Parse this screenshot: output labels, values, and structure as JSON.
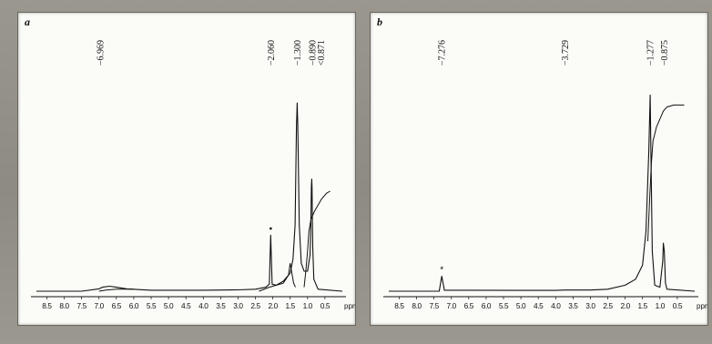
{
  "chart_data": [
    {
      "type": "line",
      "panel": "a",
      "title": "",
      "xlabel": "ppm",
      "ylabel": "",
      "xlim": [
        8.8,
        0.0
      ],
      "x_reversed": true,
      "grid": false,
      "x_ticks": [
        "8.5",
        "8.0",
        "7.5",
        "7.0",
        "6.5",
        "6.0",
        "5.5",
        "5.0",
        "4.5",
        "4.0",
        "3.5",
        "3.0",
        "2.5",
        "2.0",
        "1.5",
        "1.0",
        "0.5",
        "ppm"
      ],
      "peak_labels": [
        {
          "text": "6.969",
          "ppm": 6.969
        },
        {
          "text": "2.060",
          "ppm": 2.06
        },
        {
          "text": "1.300",
          "ppm": 1.3
        },
        {
          "text": "0.890",
          "ppm": 0.89
        },
        {
          "text": "0.871",
          "ppm": 0.871
        }
      ],
      "spectrum": [
        [
          8.8,
          0.0
        ],
        [
          7.5,
          0.0
        ],
        [
          7.0,
          0.012
        ],
        [
          6.9,
          0.02
        ],
        [
          6.7,
          0.025
        ],
        [
          6.5,
          0.02
        ],
        [
          6.2,
          0.012
        ],
        [
          5.5,
          0.005
        ],
        [
          4.0,
          0.005
        ],
        [
          3.0,
          0.007
        ],
        [
          2.5,
          0.01
        ],
        [
          2.2,
          0.02
        ],
        [
          2.1,
          0.035
        ],
        [
          2.06,
          0.28
        ],
        [
          2.02,
          0.035
        ],
        [
          1.9,
          0.03
        ],
        [
          1.7,
          0.05
        ],
        [
          1.5,
          0.09
        ],
        [
          1.42,
          0.16
        ],
        [
          1.36,
          0.33
        ],
        [
          1.32,
          0.82
        ],
        [
          1.3,
          0.94
        ],
        [
          1.28,
          0.82
        ],
        [
          1.24,
          0.33
        ],
        [
          1.18,
          0.14
        ],
        [
          1.1,
          0.1
        ],
        [
          1.0,
          0.1
        ],
        [
          0.93,
          0.18
        ],
        [
          0.91,
          0.3
        ],
        [
          0.89,
          0.52
        ],
        [
          0.88,
          0.56
        ],
        [
          0.871,
          0.52
        ],
        [
          0.85,
          0.22
        ],
        [
          0.82,
          0.06
        ],
        [
          0.7,
          0.01
        ],
        [
          0.0,
          0.0
        ]
      ],
      "integral": [
        [
          7.0,
          0.0
        ],
        [
          6.8,
          0.006
        ],
        [
          6.5,
          0.01
        ],
        [
          6.0,
          0.01
        ]
      ],
      "integral_b": [
        [
          2.4,
          0.0
        ],
        [
          2.1,
          0.02
        ],
        [
          1.9,
          0.03
        ],
        [
          1.7,
          0.04
        ],
        [
          1.55,
          0.08
        ],
        [
          1.5,
          0.14
        ],
        [
          1.4,
          0.04
        ],
        [
          1.35,
          0.02
        ]
      ],
      "integral_c": [
        [
          1.1,
          0.02
        ],
        [
          1.05,
          0.1
        ],
        [
          1.0,
          0.2
        ],
        [
          0.96,
          0.3
        ],
        [
          0.9,
          0.36
        ],
        [
          0.8,
          0.4
        ],
        [
          0.6,
          0.46
        ],
        [
          0.45,
          0.49
        ],
        [
          0.35,
          0.5
        ]
      ],
      "annotations": [
        {
          "symbol": "•",
          "ppm": 2.06
        }
      ]
    },
    {
      "type": "line",
      "panel": "b",
      "title": "",
      "xlabel": "ppm",
      "ylabel": "",
      "xlim": [
        8.8,
        0.0
      ],
      "x_reversed": true,
      "grid": false,
      "x_ticks": [
        "8.5",
        "8.0",
        "7.5",
        "7.0",
        "6.5",
        "6.0",
        "5.5",
        "5.0",
        "4.5",
        "4.0",
        "3.5",
        "3.0",
        "2.5",
        "2.0",
        "1.5",
        "1.0",
        "0.5",
        "ppm"
      ],
      "peak_labels": [
        {
          "text": "7.276",
          "ppm": 7.276
        },
        {
          "text": "3.729",
          "ppm": 3.729
        },
        {
          "text": "1.277",
          "ppm": 1.277
        },
        {
          "text": "0.875",
          "ppm": 0.875
        }
      ],
      "spectrum": [
        [
          8.8,
          0.0
        ],
        [
          7.35,
          0.0
        ],
        [
          7.276,
          0.075
        ],
        [
          7.2,
          0.005
        ],
        [
          6.5,
          0.005
        ],
        [
          5.0,
          0.004
        ],
        [
          4.0,
          0.004
        ],
        [
          3.73,
          0.006
        ],
        [
          3.0,
          0.006
        ],
        [
          2.5,
          0.01
        ],
        [
          2.0,
          0.03
        ],
        [
          1.7,
          0.06
        ],
        [
          1.5,
          0.13
        ],
        [
          1.4,
          0.3
        ],
        [
          1.32,
          0.7
        ],
        [
          1.28,
          0.98
        ],
        [
          1.26,
          0.7
        ],
        [
          1.22,
          0.2
        ],
        [
          1.15,
          0.03
        ],
        [
          1.0,
          0.02
        ],
        [
          0.92,
          0.15
        ],
        [
          0.9,
          0.24
        ],
        [
          0.875,
          0.2
        ],
        [
          0.84,
          0.04
        ],
        [
          0.8,
          0.01
        ],
        [
          0.0,
          0.0
        ]
      ],
      "integral": [
        [
          1.35,
          0.25
        ],
        [
          1.3,
          0.45
        ],
        [
          1.25,
          0.63
        ],
        [
          1.2,
          0.75
        ],
        [
          1.1,
          0.82
        ],
        [
          1.0,
          0.86
        ],
        [
          0.9,
          0.9
        ],
        [
          0.8,
          0.92
        ],
        [
          0.6,
          0.93
        ],
        [
          0.3,
          0.93
        ]
      ],
      "annotations": [
        {
          "symbol": "*",
          "ppm": 7.276
        }
      ]
    }
  ],
  "panels": {
    "a": {
      "label": "a",
      "annotation": "•",
      "unit": "ppm"
    },
    "b": {
      "label": "b",
      "annotation": "*",
      "unit": "ppm"
    }
  },
  "colors": {
    "line": "#111111",
    "paper": "#fbfbf8"
  }
}
